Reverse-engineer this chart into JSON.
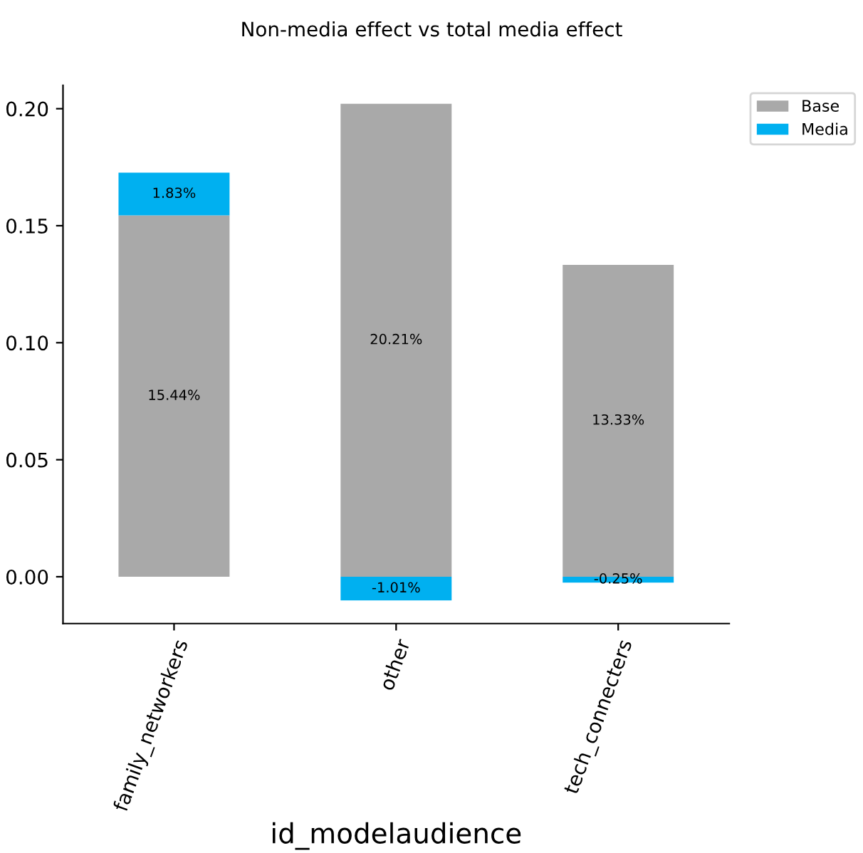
{
  "chart_data": {
    "type": "bar",
    "title": "Non-media effect vs total media effect",
    "xlabel": "id_modelaudience",
    "categories": [
      "family_networkers",
      "other",
      "tech_connecters"
    ],
    "stacked": true,
    "series": [
      {
        "name": "Base",
        "color": "#a9a9a9",
        "values": [
          0.1544,
          0.2021,
          0.1333
        ],
        "value_labels": [
          "15.44%",
          "20.21%",
          "13.33%"
        ]
      },
      {
        "name": "Media",
        "color": "#00b0f0",
        "values": [
          0.0183,
          -0.0101,
          -0.0025
        ],
        "value_labels": [
          "1.83%",
          "-1.01%",
          "-0.25%"
        ]
      }
    ],
    "ylim": [
      -0.02,
      0.21
    ],
    "yticks": [
      {
        "value": 0,
        "label": "0.00"
      },
      {
        "value": 0.05,
        "label": "0.05"
      },
      {
        "value": 0.1,
        "label": "0.10"
      },
      {
        "value": 0.15,
        "label": "0.15"
      },
      {
        "value": 0.2,
        "label": "0.20"
      }
    ],
    "grid": false,
    "legend": "top right"
  }
}
